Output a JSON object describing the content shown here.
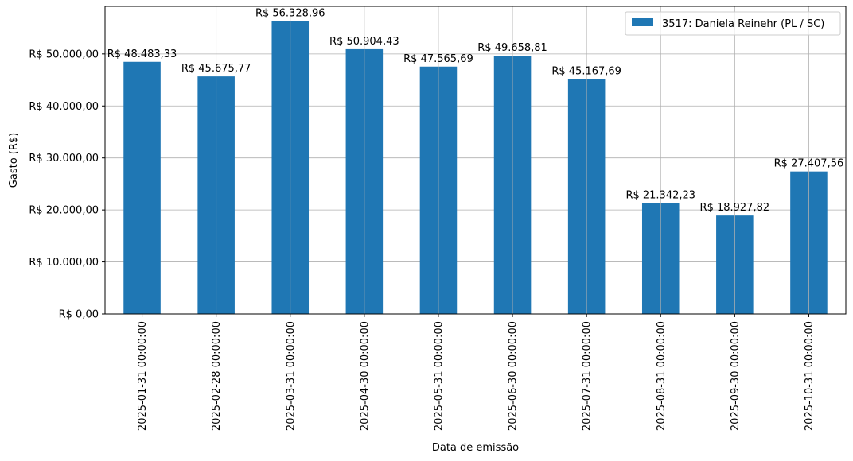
{
  "chart_data": {
    "type": "bar",
    "categories": [
      "2025-01-31 00:00:00",
      "2025-02-28 00:00:00",
      "2025-03-31 00:00:00",
      "2025-04-30 00:00:00",
      "2025-05-31 00:00:00",
      "2025-06-30 00:00:00",
      "2025-07-31 00:00:00",
      "2025-08-31 00:00:00",
      "2025-09-30 00:00:00",
      "2025-10-31 00:00:00"
    ],
    "series": [
      {
        "name": "3517: Daniela Reinehr (PL / SC)",
        "color": "#1f77b4",
        "values": [
          48483.33,
          45675.77,
          56328.96,
          50904.43,
          47565.69,
          49658.81,
          45167.69,
          21342.23,
          18927.82,
          27407.56
        ]
      }
    ],
    "data_labels": [
      "R$ 48.483,33",
      "R$ 45.675,77",
      "R$ 56.328,96",
      "R$ 50.904,43",
      "R$ 47.565,69",
      "R$ 49.658,81",
      "R$ 45.167,69",
      "R$ 21.342,23",
      "R$ 18.927,82",
      "R$ 27.407,56"
    ],
    "title": "",
    "xlabel": "Data de emissão",
    "ylabel": "Gasto (R$)",
    "ylim": [
      0,
      59145.41
    ],
    "yticks": [
      0,
      10000,
      20000,
      30000,
      40000,
      50000
    ],
    "ytick_labels": [
      "R$ 0,00",
      "R$ 10.000,00",
      "R$ 20.000,00",
      "R$ 30.000,00",
      "R$ 40.000,00",
      "R$ 50.000,00"
    ],
    "grid": true,
    "legend_position": "top-right"
  }
}
